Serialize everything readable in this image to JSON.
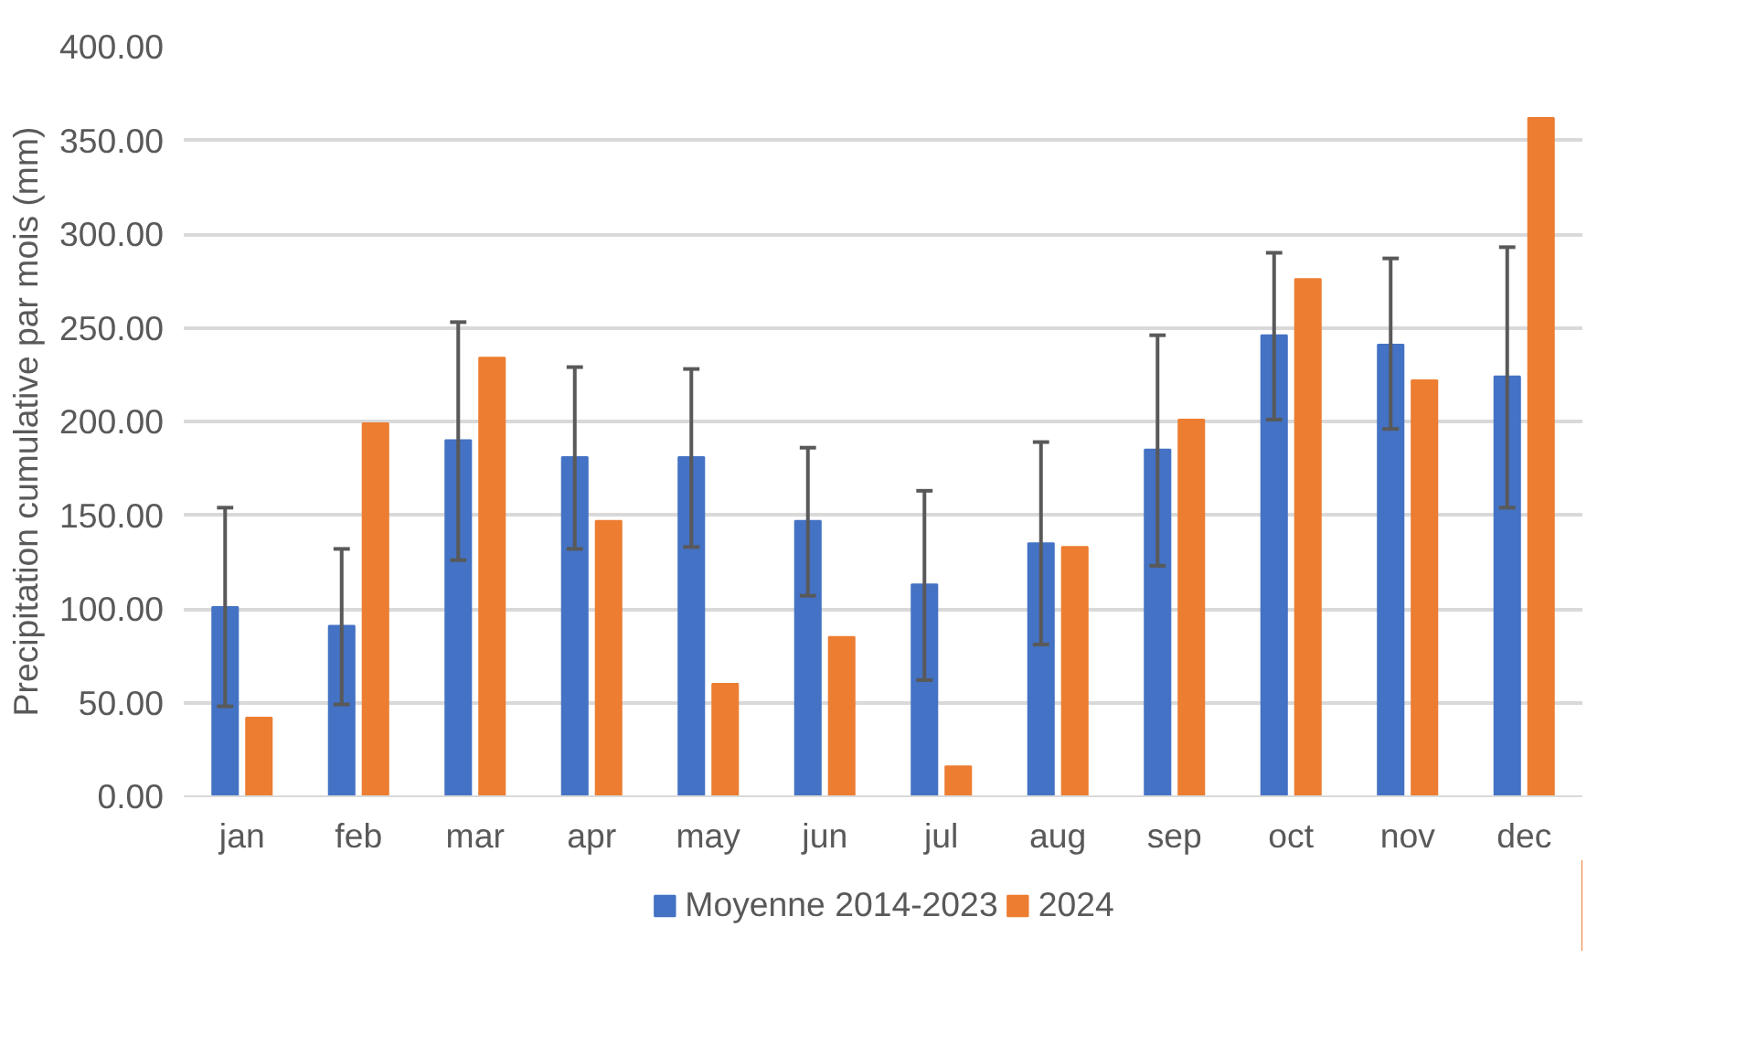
{
  "chart_data": {
    "type": "bar",
    "ylabel": "Precipitation cumulative par mois (mm)",
    "categories": [
      "jan",
      "feb",
      "mar",
      "apr",
      "may",
      "jun",
      "jul",
      "aug",
      "sep",
      "oct",
      "nov",
      "dec"
    ],
    "series": [
      {
        "name": "Moyenne 2014-2023",
        "color": "#4472c4",
        "values": [
          101,
          91,
          190,
          181,
          181,
          147,
          113,
          135,
          185,
          246,
          241,
          224
        ],
        "errors": [
          [
            48,
            154
          ],
          [
            49,
            132
          ],
          [
            126,
            253
          ],
          [
            132,
            229
          ],
          [
            133,
            228
          ],
          [
            107,
            186
          ],
          [
            62,
            163
          ],
          [
            81,
            189
          ],
          [
            123,
            246
          ],
          [
            201,
            290
          ],
          [
            196,
            287
          ],
          [
            154,
            293
          ]
        ]
      },
      {
        "name": "2024",
        "color": "#ed7d31",
        "values": [
          42,
          199,
          234,
          147,
          60,
          85,
          16,
          133,
          201,
          276,
          222,
          362
        ]
      }
    ],
    "ylim": [
      0,
      400
    ],
    "yticks": [
      {
        "value": 0,
        "label": "0.00"
      },
      {
        "value": 50,
        "label": "50.00"
      },
      {
        "value": 100,
        "label": "100.00"
      },
      {
        "value": 150,
        "label": "150.00"
      },
      {
        "value": 200,
        "label": "200.00"
      },
      {
        "value": 250,
        "label": "250.00"
      },
      {
        "value": 300,
        "label": "300.00"
      },
      {
        "value": 350,
        "label": "350.00"
      },
      {
        "value": 400,
        "label": "400.00"
      }
    ],
    "grid": "y",
    "legend": "bottom"
  }
}
